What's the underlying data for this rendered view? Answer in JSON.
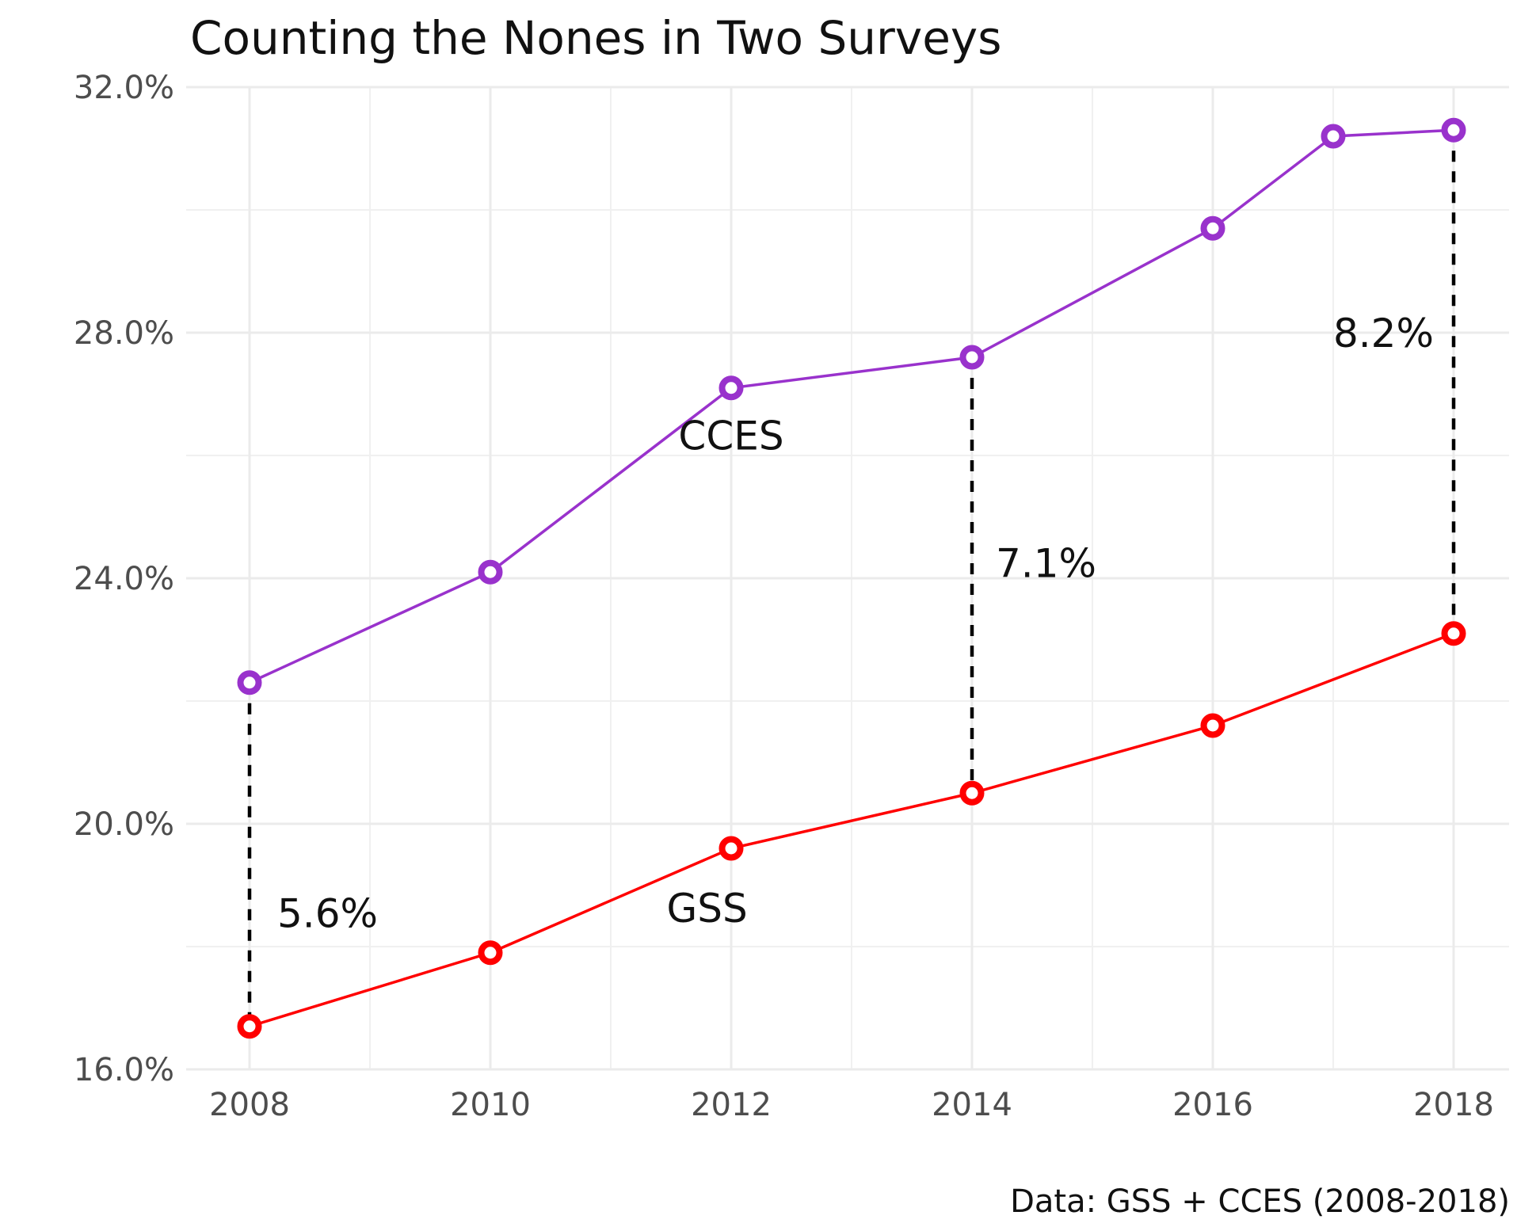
{
  "chart_data": {
    "type": "line",
    "title": "Counting the Nones in Two Surveys",
    "caption": "Data: GSS + CCES (2008-2018)",
    "xlabel": "",
    "ylabel": "",
    "xlim": [
      2008,
      2018
    ],
    "ylim": [
      16,
      32
    ],
    "x_ticks": [
      "2008",
      "2010",
      "2012",
      "2014",
      "2016",
      "2018"
    ],
    "y_ticks": [
      "16.0%",
      "20.0%",
      "24.0%",
      "28.0%",
      "32.0%"
    ],
    "grid": true,
    "legend": "none",
    "series": [
      {
        "name": "CCES",
        "color": "#9932CC",
        "x": [
          2008,
          2010,
          2012,
          2014,
          2016,
          2017,
          2018
        ],
        "values": [
          22.3,
          24.1,
          27.1,
          27.6,
          29.7,
          31.2,
          31.3
        ]
      },
      {
        "name": "GSS",
        "color": "#FF0000",
        "x": [
          2008,
          2010,
          2012,
          2014,
          2016,
          2018
        ],
        "values": [
          16.7,
          17.9,
          19.6,
          20.5,
          21.6,
          23.1
        ]
      }
    ],
    "gap_annotations": [
      {
        "year": 2008,
        "label": "5.6%"
      },
      {
        "year": 2014,
        "label": "7.1%"
      },
      {
        "year": 2018,
        "label": "8.2%"
      }
    ]
  }
}
